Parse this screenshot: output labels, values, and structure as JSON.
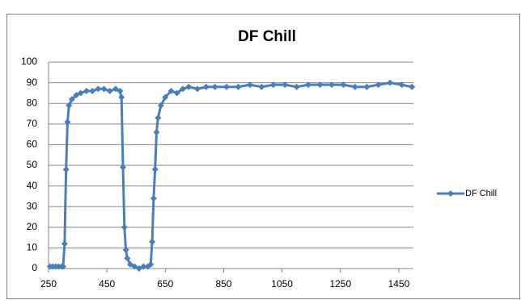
{
  "chart_data": {
    "type": "line",
    "title": "DF Chill",
    "x": [
      255,
      265,
      275,
      285,
      295,
      300,
      305,
      310,
      315,
      320,
      330,
      345,
      360,
      380,
      400,
      420,
      440,
      460,
      480,
      495,
      500,
      505,
      510,
      515,
      520,
      530,
      545,
      560,
      575,
      590,
      600,
      605,
      610,
      615,
      620,
      625,
      635,
      650,
      670,
      690,
      710,
      730,
      760,
      790,
      820,
      860,
      900,
      940,
      980,
      1020,
      1060,
      1100,
      1140,
      1180,
      1220,
      1260,
      1300,
      1340,
      1380,
      1420,
      1460,
      1495
    ],
    "series": [
      {
        "name": "DF Chill",
        "color": "#4a7ebb",
        "values": [
          1,
          1,
          1,
          1,
          1,
          1,
          12,
          48,
          71,
          79,
          82,
          84,
          85,
          86,
          86,
          87,
          87,
          86,
          87,
          86,
          83,
          49,
          20,
          9,
          5,
          2,
          1,
          0,
          1,
          1,
          2,
          13,
          34,
          48,
          66,
          73,
          79,
          83,
          86,
          85,
          87,
          88,
          87,
          88,
          88,
          88,
          88,
          89,
          88,
          89,
          89,
          88,
          89,
          89,
          89,
          89,
          88,
          88,
          89,
          90,
          89,
          88
        ]
      }
    ],
    "xlim": [
      250,
      1500
    ],
    "xticks": [
      250,
      450,
      650,
      850,
      1050,
      1250,
      1450
    ],
    "ylim": [
      0,
      100
    ],
    "yticks": [
      0,
      10,
      20,
      30,
      40,
      50,
      60,
      70,
      80,
      90,
      100
    ],
    "grid": true,
    "legend": "right"
  }
}
